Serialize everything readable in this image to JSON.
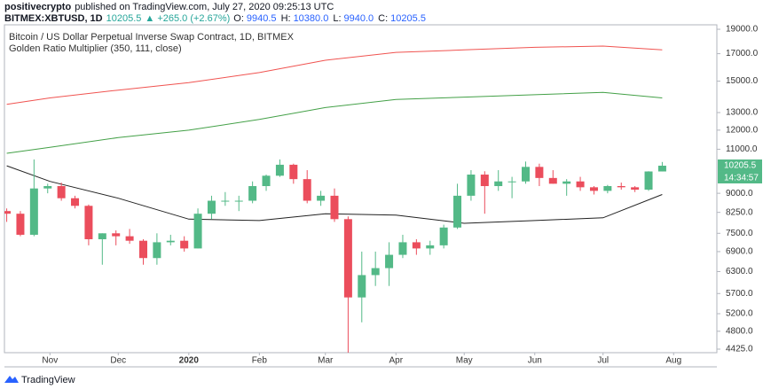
{
  "header": {
    "user": "positivecrypto",
    "published": "published on TradingView.com, July 27, 2020 09:25:13 UTC",
    "symbol": "BITMEX:XBTUSD, 1D",
    "last": "10205.5",
    "change": "▲ +265.0 (+2.67%)",
    "ohlc": [
      {
        "label": "O:",
        "value": "9940.5"
      },
      {
        "label": "H:",
        "value": "10380.0"
      },
      {
        "label": "L:",
        "value": "9940.0"
      },
      {
        "label": "C:",
        "value": "10205.5"
      }
    ]
  },
  "chart_data": {
    "type": "candlestick",
    "title": "Bitcoin / US Dollar Perpetual Inverse Swap Contract, 1D, BITMEX",
    "subtitle": "Golden Ratio Multiplier (350, 111, close)",
    "log": true,
    "grid": false,
    "up_color": "#53b987",
    "down_color": "#eb4d5c",
    "candles": {
      "x": [
        "2019-10-13",
        "2019-10-19",
        "2019-10-25",
        "2019-10-31",
        "2019-11-06",
        "2019-11-12",
        "2019-11-18",
        "2019-11-24",
        "2019-11-30",
        "2019-12-06",
        "2019-12-12",
        "2019-12-18",
        "2019-12-24",
        "2019-12-30",
        "2020-01-05",
        "2020-01-11",
        "2020-01-17",
        "2020-01-23",
        "2020-01-29",
        "2020-02-04",
        "2020-02-10",
        "2020-02-16",
        "2020-02-22",
        "2020-02-28",
        "2020-03-05",
        "2020-03-11",
        "2020-03-17",
        "2020-03-23",
        "2020-03-29",
        "2020-04-04",
        "2020-04-10",
        "2020-04-16",
        "2020-04-22",
        "2020-04-28",
        "2020-05-04",
        "2020-05-10",
        "2020-05-16",
        "2020-05-22",
        "2020-05-28",
        "2020-06-03",
        "2020-06-09",
        "2020-06-15",
        "2020-06-21",
        "2020-06-27",
        "2020-07-03",
        "2020-07-09",
        "2020-07-15",
        "2020-07-21",
        "2020-07-27"
      ],
      "open": [
        8300,
        8200,
        7450,
        9200,
        9300,
        8800,
        8500,
        7300,
        7500,
        7400,
        7250,
        6700,
        7200,
        7250,
        7000,
        8200,
        8700,
        8700,
        8700,
        9300,
        9750,
        10250,
        9600,
        8700,
        8900,
        8000,
        5600,
        6200,
        6400,
        6800,
        7200,
        7000,
        7100,
        7700,
        8900,
        9800,
        9300,
        9500,
        9500,
        10150,
        9650,
        9400,
        9500,
        9250,
        9100,
        9300,
        9250,
        9150,
        9940.5
      ],
      "high": [
        8400,
        8300,
        10500,
        9400,
        9450,
        8900,
        8550,
        7500,
        7600,
        7650,
        7300,
        7500,
        7450,
        7400,
        8400,
        8900,
        9050,
        8900,
        9500,
        9800,
        10500,
        10300,
        10000,
        9100,
        9200,
        8100,
        6900,
        6900,
        7200,
        7450,
        7300,
        7250,
        7800,
        9400,
        10000,
        9950,
        10000,
        9700,
        10400,
        10300,
        10000,
        9600,
        9700,
        9300,
        9350,
        9450,
        9300,
        9950,
        10380
      ],
      "low": [
        7900,
        7400,
        7400,
        9000,
        8700,
        8400,
        7100,
        6500,
        7100,
        7150,
        6500,
        6500,
        7100,
        6900,
        7000,
        8000,
        8500,
        8300,
        8600,
        9100,
        9700,
        9400,
        8600,
        8500,
        7900,
        3800,
        5000,
        5900,
        5900,
        6700,
        6800,
        6800,
        7000,
        7650,
        8700,
        8200,
        9100,
        8800,
        9400,
        9300,
        9400,
        8900,
        9100,
        8950,
        9000,
        9150,
        9050,
        9100,
        9940
      ],
      "close": [
        8200,
        7450,
        9200,
        9300,
        8800,
        8500,
        7300,
        7500,
        7400,
        7250,
        6700,
        7200,
        7250,
        7000,
        8200,
        8700,
        8700,
        8700,
        9300,
        9750,
        10250,
        9600,
        8700,
        8900,
        8000,
        5600,
        6200,
        6400,
        6800,
        7200,
        7000,
        7100,
        7700,
        8900,
        9800,
        9300,
        9500,
        9500,
        10150,
        9650,
        9400,
        9500,
        9250,
        9100,
        9300,
        9250,
        9150,
        9940.5,
        10205.5
      ]
    },
    "countdown": "14:34:57",
    "overlays": {
      "x": [
        "2019-10-13",
        "2019-11-01",
        "2019-12-01",
        "2020-01-01",
        "2020-02-01",
        "2020-03-01",
        "2020-04-01",
        "2020-05-01",
        "2020-06-01",
        "2020-07-01",
        "2020-07-27"
      ],
      "series": [
        {
          "color": "#f05350",
          "values": [
            13500,
            13900,
            14400,
            14900,
            15600,
            16500,
            17100,
            17300,
            17500,
            17600,
            17300
          ]
        },
        {
          "color": "#43a047",
          "values": [
            10800,
            11100,
            11600,
            12000,
            12600,
            13300,
            13800,
            13950,
            14100,
            14250,
            13900
          ]
        },
        {
          "color": "#222222",
          "values": [
            10200,
            9500,
            8800,
            8000,
            7950,
            8200,
            8150,
            7850,
            7950,
            8050,
            8950
          ]
        }
      ]
    },
    "ylim": [
      4354,
      19390
    ],
    "yticks": [
      {
        "value": 19000,
        "label": "19000.0"
      },
      {
        "value": 17000,
        "label": "17000.0"
      },
      {
        "value": 15000,
        "label": "15000.0"
      },
      {
        "value": 13000,
        "label": "13000.0"
      },
      {
        "value": 12000,
        "label": "12000.0"
      },
      {
        "value": 11000,
        "label": "11000.0"
      },
      {
        "value": 9000,
        "label": "9000.0"
      },
      {
        "value": 8250,
        "label": "8250.0"
      },
      {
        "value": 7500,
        "label": "7500.0"
      },
      {
        "value": 6900,
        "label": "6900.0"
      },
      {
        "value": 6300,
        "label": "6300.0"
      },
      {
        "value": 5700,
        "label": "5700.0"
      },
      {
        "value": 5200,
        "label": "5200.0"
      },
      {
        "value": 4800,
        "label": "4800.0"
      },
      {
        "value": 4425,
        "label": "4425.0"
      }
    ],
    "xlim": [
      "2019-10-12",
      "2020-08-20"
    ],
    "xticks": [
      {
        "value": "2019-11-01",
        "label": "Nov"
      },
      {
        "value": "2019-12-01",
        "label": "Dec"
      },
      {
        "value": "2020-01-01",
        "label": "2020"
      },
      {
        "value": "2020-02-01",
        "label": "Feb"
      },
      {
        "value": "2020-03-01",
        "label": "Mar"
      },
      {
        "value": "2020-04-01",
        "label": "Apr"
      },
      {
        "value": "2020-05-01",
        "label": "May"
      },
      {
        "value": "2020-06-01",
        "label": "Jun"
      },
      {
        "value": "2020-07-01",
        "label": "Jul"
      },
      {
        "value": "2020-08-01",
        "label": "Aug"
      }
    ]
  },
  "footer": {
    "brand": "TradingView"
  }
}
